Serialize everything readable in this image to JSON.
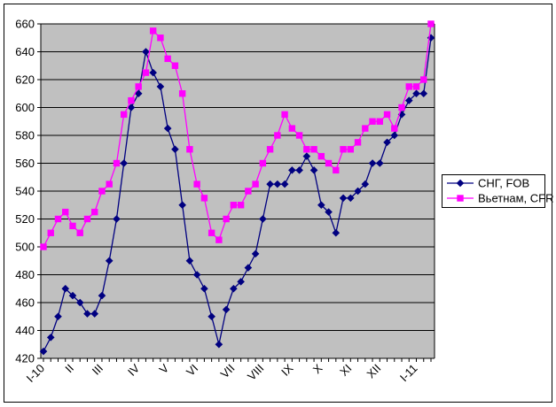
{
  "chart_data": {
    "type": "line",
    "title": "",
    "xlabel": "",
    "ylabel": "",
    "ylim": [
      420,
      660
    ],
    "y_tick_step": 20,
    "y_tick_labels": [
      "660",
      "640",
      "620",
      "600",
      "580",
      "560",
      "540",
      "520",
      "500",
      "480",
      "460",
      "440",
      "420"
    ],
    "x_labels": [
      "I-10",
      "II",
      "III",
      "IV",
      "V",
      "VI",
      "VII",
      "VIII",
      "IX",
      "X",
      "XI",
      "XII",
      "I-11"
    ],
    "x_label_indices": [
      0,
      4,
      8,
      13,
      17,
      21,
      26,
      30,
      34,
      38,
      42,
      46,
      51
    ],
    "n_points": 54,
    "grid": true,
    "plot_bg": "#c0c0c0",
    "grid_color": "#000000",
    "legend_position": "right",
    "series": [
      {
        "name": "СНГ, FOB",
        "color": "#000080",
        "marker": "diamond",
        "values": [
          425,
          435,
          450,
          470,
          465,
          460,
          452,
          452,
          465,
          490,
          520,
          560,
          600,
          610,
          640,
          625,
          615,
          585,
          570,
          530,
          490,
          480,
          470,
          450,
          430,
          455,
          470,
          475,
          485,
          495,
          520,
          545,
          545,
          545,
          555,
          555,
          565,
          555,
          530,
          525,
          510,
          535,
          535,
          540,
          545,
          560,
          560,
          575,
          580,
          595,
          605,
          610,
          610,
          650
        ]
      },
      {
        "name": "Вьетнам, CFR",
        "color": "#ff00ff",
        "marker": "square",
        "values": [
          500,
          510,
          520,
          525,
          515,
          510,
          520,
          525,
          540,
          545,
          560,
          595,
          605,
          615,
          625,
          655,
          650,
          635,
          630,
          610,
          570,
          545,
          535,
          510,
          505,
          520,
          530,
          530,
          540,
          545,
          560,
          570,
          580,
          595,
          585,
          580,
          570,
          570,
          565,
          560,
          555,
          570,
          570,
          575,
          585,
          590,
          590,
          595,
          585,
          600,
          615,
          615,
          620,
          660
        ]
      }
    ],
    "legend": {
      "items": [
        {
          "label": "СНГ, FOB",
          "swatch": "diamond-line",
          "color": "#000080"
        },
        {
          "label": "Вьетнам, CFR",
          "swatch": "square-line",
          "color": "#ff00ff"
        }
      ]
    }
  },
  "frame": {
    "border_color": "#000000",
    "background": "#ffffff"
  }
}
